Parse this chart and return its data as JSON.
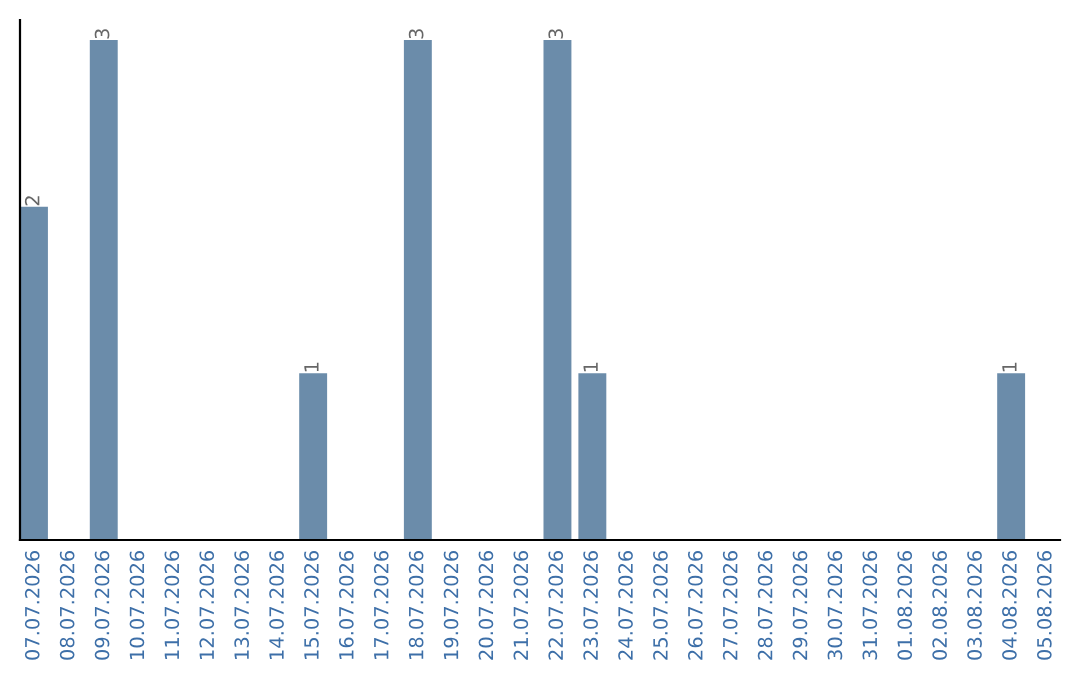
{
  "chart_data": {
    "type": "bar",
    "categories": [
      "07.07.2026",
      "08.07.2026",
      "09.07.2026",
      "10.07.2026",
      "11.07.2026",
      "12.07.2026",
      "13.07.2026",
      "14.07.2026",
      "15.07.2026",
      "16.07.2026",
      "17.07.2026",
      "18.07.2026",
      "19.07.2026",
      "20.07.2026",
      "21.07.2026",
      "22.07.2026",
      "23.07.2026",
      "24.07.2026",
      "25.07.2026",
      "26.07.2026",
      "27.07.2026",
      "28.07.2026",
      "29.07.2026",
      "30.07.2026",
      "31.07.2026",
      "01.08.2026",
      "02.08.2026",
      "03.08.2026",
      "04.08.2026",
      "05.08.2026"
    ],
    "values": [
      2,
      0,
      3,
      0,
      0,
      0,
      0,
      0,
      1,
      0,
      0,
      3,
      0,
      0,
      0,
      3,
      1,
      0,
      0,
      0,
      0,
      0,
      0,
      0,
      0,
      0,
      0,
      0,
      1,
      0
    ],
    "value_labels": [
      "2",
      null,
      "3",
      null,
      null,
      null,
      null,
      null,
      "1",
      null,
      null,
      "3",
      null,
      null,
      null,
      "3",
      "1",
      null,
      null,
      null,
      null,
      null,
      null,
      null,
      null,
      null,
      null,
      null,
      "1",
      null
    ],
    "color": "#6b8caa",
    "ylim": [
      0,
      3.12
    ],
    "tick_labels": "x",
    "grid": false,
    "legend": false
  }
}
